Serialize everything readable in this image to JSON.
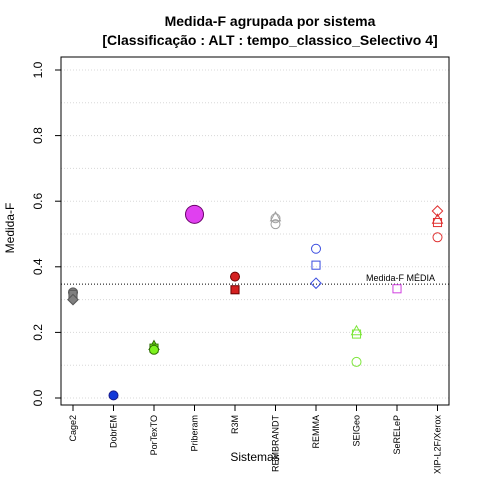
{
  "chart_data": {
    "type": "scatter",
    "title": "Medida-F agrupada por sistema",
    "subtitle": "[Classificação : ALT : tempo_classico_Selectivo 4]",
    "xlabel": "Sistemas",
    "ylabel": "Medida-F",
    "ylim": [
      0,
      1
    ],
    "yticks": [
      "0.0",
      "0.2",
      "0.4",
      "0.6",
      "0.8",
      "1.0"
    ],
    "grid": "horizontal dotted",
    "categories": [
      "Cage2",
      "DobrEM",
      "PorTexTO",
      "Priberam",
      "R3M",
      "REMBRANDT",
      "REMMA",
      "SEIGeo",
      "SeRELeP",
      "XIP-L2F/Xerox"
    ],
    "reference_line": {
      "label": "Medida-F MÉDIA",
      "value": 0.347
    },
    "points": [
      {
        "category": "Cage2",
        "marker": "circle",
        "value": 0.322,
        "filled": true,
        "size": "small",
        "color": "#555555",
        "fill": "#808080"
      },
      {
        "category": "Cage2",
        "marker": "square",
        "value": 0.316,
        "filled": true,
        "size": "small",
        "color": "#555555",
        "fill": "#808080"
      },
      {
        "category": "Cage2",
        "marker": "diamond",
        "value": 0.3,
        "filled": true,
        "size": "small",
        "color": "#555555",
        "fill": "#808080"
      },
      {
        "category": "DobrEM",
        "marker": "circle",
        "value": 0.008,
        "filled": true,
        "size": "small",
        "color": "#1a1a8a",
        "fill": "#1238d8"
      },
      {
        "category": "PorTexTO",
        "marker": "triangle",
        "value": 0.16,
        "filled": true,
        "size": "small",
        "color": "#2e6e00",
        "fill": "#7df21e"
      },
      {
        "category": "PorTexTO",
        "marker": "square",
        "value": 0.152,
        "filled": true,
        "size": "small",
        "color": "#2e6e00",
        "fill": "#7df21e"
      },
      {
        "category": "PorTexTO",
        "marker": "circle",
        "value": 0.147,
        "filled": true,
        "size": "small",
        "color": "#2e6e00",
        "fill": "#7df21e"
      },
      {
        "category": "Priberam",
        "marker": "circle",
        "value": 0.56,
        "filled": true,
        "size": "large",
        "color": "#6a006a",
        "fill": "#e040f0"
      },
      {
        "category": "R3M",
        "marker": "circle",
        "value": 0.37,
        "filled": true,
        "size": "small",
        "color": "#6a0000",
        "fill": "#d42020"
      },
      {
        "category": "R3M",
        "marker": "square",
        "value": 0.33,
        "filled": true,
        "size": "small",
        "color": "#6a0000",
        "fill": "#d42020"
      },
      {
        "category": "REMBRANDT",
        "marker": "triangle",
        "value": 0.552,
        "filled": false,
        "size": "small",
        "color": "#a0a0a0",
        "fill": "none"
      },
      {
        "category": "REMBRANDT",
        "marker": "circle",
        "value": 0.548,
        "filled": false,
        "size": "small",
        "color": "#a0a0a0",
        "fill": "none"
      },
      {
        "category": "REMBRANDT",
        "marker": "circle",
        "value": 0.53,
        "filled": false,
        "size": "small",
        "color": "#a0a0a0",
        "fill": "none"
      },
      {
        "category": "REMMA",
        "marker": "circle",
        "value": 0.455,
        "filled": false,
        "size": "small",
        "color": "#3a4de0",
        "fill": "none"
      },
      {
        "category": "REMMA",
        "marker": "square",
        "value": 0.405,
        "filled": false,
        "size": "small",
        "color": "#3a4de0",
        "fill": "none"
      },
      {
        "category": "REMMA",
        "marker": "diamond",
        "value": 0.35,
        "filled": false,
        "size": "small",
        "color": "#3a4de0",
        "fill": "none"
      },
      {
        "category": "SEIGeo",
        "marker": "triangle",
        "value": 0.205,
        "filled": false,
        "size": "small",
        "color": "#7de63a",
        "fill": "none"
      },
      {
        "category": "SEIGeo",
        "marker": "square",
        "value": 0.195,
        "filled": false,
        "size": "small",
        "color": "#7de63a",
        "fill": "none"
      },
      {
        "category": "SEIGeo",
        "marker": "circle",
        "value": 0.11,
        "filled": false,
        "size": "small",
        "color": "#7de63a",
        "fill": "none"
      },
      {
        "category": "SeRELeP",
        "marker": "square",
        "value": 0.333,
        "filled": false,
        "size": "small",
        "color": "#d040e0",
        "fill": "none"
      },
      {
        "category": "XIP-L2F/Xerox",
        "marker": "diamond",
        "value": 0.57,
        "filled": false,
        "size": "small",
        "color": "#e03030",
        "fill": "none"
      },
      {
        "category": "XIP-L2F/Xerox",
        "marker": "triangle",
        "value": 0.545,
        "filled": false,
        "size": "small",
        "color": "#e03030",
        "fill": "none"
      },
      {
        "category": "XIP-L2F/Xerox",
        "marker": "square",
        "value": 0.535,
        "filled": false,
        "size": "small",
        "color": "#e03030",
        "fill": "none"
      },
      {
        "category": "XIP-L2F/Xerox",
        "marker": "circle",
        "value": 0.49,
        "filled": false,
        "size": "small",
        "color": "#e03030",
        "fill": "none"
      }
    ]
  }
}
